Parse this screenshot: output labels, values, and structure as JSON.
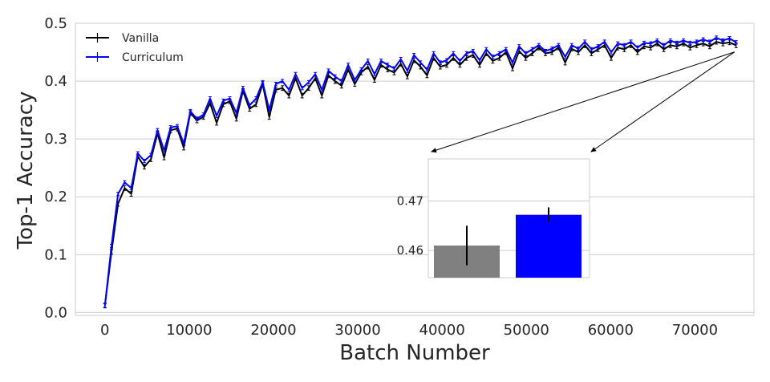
{
  "chart_data": [
    {
      "type": "line",
      "xlabel": "Batch Number",
      "ylabel": "Top-1 Accuracy",
      "xlim": [
        -3500,
        77000
      ],
      "ylim": [
        -0.005,
        0.5
      ],
      "xticks": [
        0,
        10000,
        20000,
        30000,
        40000,
        50000,
        60000,
        70000
      ],
      "xtick_labels": [
        "0",
        "10000",
        "20000",
        "30000",
        "40000",
        "50000",
        "60000",
        "70000"
      ],
      "yticks": [
        0.0,
        0.1,
        0.2,
        0.3,
        0.4,
        0.5
      ],
      "ytick_labels": [
        "0.0",
        "0.1",
        "0.2",
        "0.3",
        "0.4",
        "0.5"
      ],
      "grid": "horizontal",
      "legend": "top-left",
      "series": [
        {
          "name": "Vanilla",
          "color": "#000000",
          "error": 0.004,
          "points": [
            [
              0,
              0.012
            ],
            [
              780,
              0.105
            ],
            [
              1560,
              0.188
            ],
            [
              2340,
              0.215
            ],
            [
              3120,
              0.205
            ],
            [
              3900,
              0.27
            ],
            [
              4680,
              0.252
            ],
            [
              5460,
              0.265
            ],
            [
              6240,
              0.31
            ],
            [
              7020,
              0.268
            ],
            [
              7800,
              0.315
            ],
            [
              8580,
              0.318
            ],
            [
              9360,
              0.285
            ],
            [
              10140,
              0.345
            ],
            [
              10920,
              0.332
            ],
            [
              11700,
              0.338
            ],
            [
              12480,
              0.362
            ],
            [
              13260,
              0.328
            ],
            [
              14040,
              0.36
            ],
            [
              14820,
              0.365
            ],
            [
              15600,
              0.335
            ],
            [
              16380,
              0.383
            ],
            [
              17160,
              0.352
            ],
            [
              17940,
              0.36
            ],
            [
              18720,
              0.395
            ],
            [
              19500,
              0.338
            ],
            [
              20280,
              0.385
            ],
            [
              21060,
              0.388
            ],
            [
              21840,
              0.375
            ],
            [
              22620,
              0.405
            ],
            [
              23400,
              0.375
            ],
            [
              24180,
              0.388
            ],
            [
              24960,
              0.405
            ],
            [
              25740,
              0.375
            ],
            [
              26520,
              0.41
            ],
            [
              27300,
              0.4
            ],
            [
              28080,
              0.392
            ],
            [
              28860,
              0.42
            ],
            [
              29640,
              0.395
            ],
            [
              30420,
              0.415
            ],
            [
              31200,
              0.425
            ],
            [
              31980,
              0.402
            ],
            [
              32760,
              0.428
            ],
            [
              33540,
              0.42
            ],
            [
              34320,
              0.415
            ],
            [
              35100,
              0.43
            ],
            [
              35880,
              0.408
            ],
            [
              36660,
              0.436
            ],
            [
              37440,
              0.425
            ],
            [
              38220,
              0.41
            ],
            [
              39000,
              0.44
            ],
            [
              39780,
              0.425
            ],
            [
              40560,
              0.428
            ],
            [
              41340,
              0.44
            ],
            [
              42120,
              0.428
            ],
            [
              42900,
              0.44
            ],
            [
              43680,
              0.445
            ],
            [
              44460,
              0.428
            ],
            [
              45240,
              0.448
            ],
            [
              46020,
              0.435
            ],
            [
              46800,
              0.44
            ],
            [
              47580,
              0.45
            ],
            [
              48360,
              0.422
            ],
            [
              49140,
              0.452
            ],
            [
              49920,
              0.44
            ],
            [
              50700,
              0.448
            ],
            [
              51480,
              0.458
            ],
            [
              52260,
              0.448
            ],
            [
              53040,
              0.45
            ],
            [
              53820,
              0.458
            ],
            [
              54600,
              0.432
            ],
            [
              55380,
              0.456
            ],
            [
              56160,
              0.45
            ],
            [
              56940,
              0.462
            ],
            [
              57720,
              0.448
            ],
            [
              58500,
              0.455
            ],
            [
              59280,
              0.462
            ],
            [
              60060,
              0.44
            ],
            [
              60840,
              0.458
            ],
            [
              61620,
              0.455
            ],
            [
              62400,
              0.462
            ],
            [
              63180,
              0.45
            ],
            [
              63960,
              0.46
            ],
            [
              64740,
              0.458
            ],
            [
              65520,
              0.465
            ],
            [
              66300,
              0.455
            ],
            [
              67080,
              0.462
            ],
            [
              67860,
              0.46
            ],
            [
              68640,
              0.465
            ],
            [
              69420,
              0.458
            ],
            [
              70200,
              0.462
            ],
            [
              70980,
              0.465
            ],
            [
              71760,
              0.46
            ],
            [
              72540,
              0.468
            ],
            [
              73320,
              0.465
            ],
            [
              74100,
              0.467
            ],
            [
              74880,
              0.462
            ]
          ]
        },
        {
          "name": "Curriculum",
          "color": "#0000ff",
          "error": 0.003,
          "points": [
            [
              0,
              0.012
            ],
            [
              780,
              0.115
            ],
            [
              1560,
              0.205
            ],
            [
              2340,
              0.225
            ],
            [
              3120,
              0.215
            ],
            [
              3900,
              0.275
            ],
            [
              4680,
              0.262
            ],
            [
              5460,
              0.272
            ],
            [
              6240,
              0.315
            ],
            [
              7020,
              0.28
            ],
            [
              7800,
              0.32
            ],
            [
              8580,
              0.322
            ],
            [
              9360,
              0.292
            ],
            [
              10140,
              0.348
            ],
            [
              10920,
              0.335
            ],
            [
              11700,
              0.342
            ],
            [
              12480,
              0.37
            ],
            [
              13260,
              0.34
            ],
            [
              14040,
              0.366
            ],
            [
              14820,
              0.37
            ],
            [
              15600,
              0.345
            ],
            [
              16380,
              0.388
            ],
            [
              17160,
              0.358
            ],
            [
              17940,
              0.37
            ],
            [
              18720,
              0.398
            ],
            [
              19500,
              0.35
            ],
            [
              20280,
              0.395
            ],
            [
              21060,
              0.4
            ],
            [
              21840,
              0.385
            ],
            [
              22620,
              0.412
            ],
            [
              23400,
              0.388
            ],
            [
              24180,
              0.398
            ],
            [
              24960,
              0.412
            ],
            [
              25740,
              0.385
            ],
            [
              26520,
              0.418
            ],
            [
              27300,
              0.408
            ],
            [
              28080,
              0.4
            ],
            [
              28860,
              0.428
            ],
            [
              29640,
              0.402
            ],
            [
              30420,
              0.42
            ],
            [
              31200,
              0.435
            ],
            [
              31980,
              0.412
            ],
            [
              32760,
              0.435
            ],
            [
              33540,
              0.428
            ],
            [
              34320,
              0.422
            ],
            [
              35100,
              0.438
            ],
            [
              35880,
              0.418
            ],
            [
              36660,
              0.445
            ],
            [
              37440,
              0.432
            ],
            [
              38220,
              0.42
            ],
            [
              39000,
              0.448
            ],
            [
              39780,
              0.432
            ],
            [
              40560,
              0.436
            ],
            [
              41340,
              0.448
            ],
            [
              42120,
              0.435
            ],
            [
              42900,
              0.448
            ],
            [
              43680,
              0.452
            ],
            [
              44460,
              0.436
            ],
            [
              45240,
              0.455
            ],
            [
              46020,
              0.442
            ],
            [
              46800,
              0.448
            ],
            [
              47580,
              0.455
            ],
            [
              48360,
              0.432
            ],
            [
              49140,
              0.46
            ],
            [
              49920,
              0.448
            ],
            [
              50700,
              0.455
            ],
            [
              51480,
              0.462
            ],
            [
              52260,
              0.452
            ],
            [
              53040,
              0.456
            ],
            [
              53820,
              0.462
            ],
            [
              54600,
              0.442
            ],
            [
              55380,
              0.462
            ],
            [
              56160,
              0.456
            ],
            [
              56940,
              0.468
            ],
            [
              57720,
              0.455
            ],
            [
              58500,
              0.46
            ],
            [
              59280,
              0.468
            ],
            [
              60060,
              0.45
            ],
            [
              60840,
              0.465
            ],
            [
              61620,
              0.462
            ],
            [
              62400,
              0.468
            ],
            [
              63180,
              0.458
            ],
            [
              63960,
              0.466
            ],
            [
              64740,
              0.465
            ],
            [
              65520,
              0.47
            ],
            [
              66300,
              0.462
            ],
            [
              67080,
              0.47
            ],
            [
              67860,
              0.466
            ],
            [
              68640,
              0.47
            ],
            [
              69420,
              0.466
            ],
            [
              70200,
              0.468
            ],
            [
              70980,
              0.472
            ],
            [
              71760,
              0.468
            ],
            [
              72540,
              0.475
            ],
            [
              73320,
              0.47
            ],
            [
              74100,
              0.474
            ],
            [
              74880,
              0.467
            ]
          ]
        }
      ]
    },
    {
      "type": "bar",
      "yticks": [
        0.46,
        0.47
      ],
      "ytick_labels": [
        "0.46",
        "0.47"
      ],
      "ylim": [
        0.4545,
        0.4785
      ],
      "bars": [
        {
          "value": 0.461,
          "error": 0.004,
          "color": "#808080"
        },
        {
          "value": 0.4672,
          "error": 0.0015,
          "color": "#0000ff"
        }
      ]
    }
  ]
}
